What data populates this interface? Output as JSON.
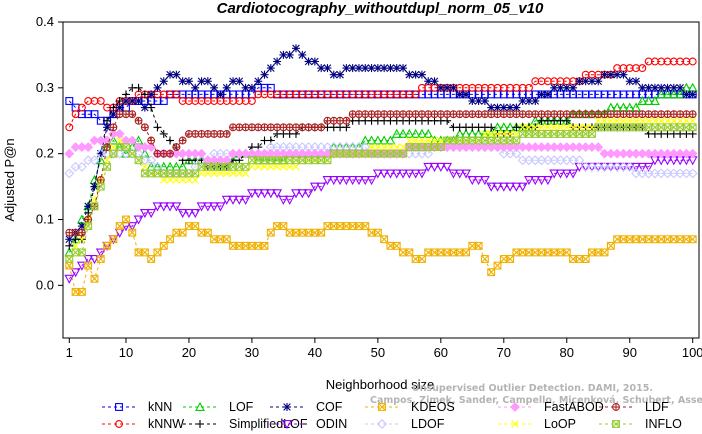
{
  "watermark": [
    "Unsupervised Outlier Detection. DAMI, 2015.",
    "Campos, Zimek, Sander, Campello, Micenková, Schubert, Assent, Houle"
  ],
  "chart_data": {
    "type": "line",
    "title": "Cardiotocography_withoutdupl_norm_05_v10",
    "xlabel": "Neighborhood size",
    "ylabel": "Adjusted P@n",
    "xlim": [
      0,
      101
    ],
    "ylim": [
      -0.08,
      0.4
    ],
    "xticks": [
      1,
      10,
      20,
      30,
      40,
      50,
      60,
      70,
      80,
      90,
      100
    ],
    "yticks": [
      0.0,
      0.1,
      0.2,
      0.3,
      0.4
    ],
    "ytick_labels": [
      "0.0",
      "0.1",
      "0.2",
      "0.3",
      "0.4"
    ],
    "grid": false,
    "legend_position": "bottom",
    "x_start": 1,
    "series": [
      {
        "name": "kNN",
        "color": "#0000ff",
        "marker": "square",
        "keys": [
          [
            1,
            0.28
          ],
          [
            2,
            0.27
          ],
          [
            3,
            0.26
          ],
          [
            5,
            0.255
          ],
          [
            7,
            0.25
          ],
          [
            9,
            0.27
          ],
          [
            12,
            0.28
          ],
          [
            16,
            0.28
          ],
          [
            18,
            0.29
          ],
          [
            30,
            0.29
          ],
          [
            32,
            0.3
          ],
          [
            34,
            0.29
          ],
          [
            100,
            0.29
          ]
        ]
      },
      {
        "name": "kNNW",
        "color": "#ff0000",
        "marker": "circle",
        "keys": [
          [
            1,
            0.24
          ],
          [
            3,
            0.27
          ],
          [
            5,
            0.28
          ],
          [
            7,
            0.27
          ],
          [
            10,
            0.28
          ],
          [
            14,
            0.29
          ],
          [
            16,
            0.29
          ],
          [
            20,
            0.28
          ],
          [
            28,
            0.28
          ],
          [
            33,
            0.29
          ],
          [
            55,
            0.29
          ],
          [
            58,
            0.3
          ],
          [
            62,
            0.3
          ],
          [
            70,
            0.3
          ],
          [
            80,
            0.31
          ],
          [
            90,
            0.33
          ],
          [
            95,
            0.34
          ],
          [
            100,
            0.34
          ]
        ]
      },
      {
        "name": "LOF",
        "color": "#00cc00",
        "marker": "triangle",
        "keys": [
          [
            1,
            0.05
          ],
          [
            4,
            0.12
          ],
          [
            6,
            0.19
          ],
          [
            8,
            0.22
          ],
          [
            10,
            0.2
          ],
          [
            12,
            0.22
          ],
          [
            14,
            0.18
          ],
          [
            18,
            0.18
          ],
          [
            22,
            0.19
          ],
          [
            26,
            0.18
          ],
          [
            28,
            0.2
          ],
          [
            32,
            0.19
          ],
          [
            40,
            0.2
          ],
          [
            50,
            0.22
          ],
          [
            56,
            0.23
          ],
          [
            60,
            0.22
          ],
          [
            66,
            0.23
          ],
          [
            72,
            0.24
          ],
          [
            78,
            0.25
          ],
          [
            84,
            0.26
          ],
          [
            90,
            0.27
          ],
          [
            100,
            0.3
          ]
        ]
      },
      {
        "name": "SimplifiedLOF",
        "color": "#000000",
        "marker": "plus",
        "keys": [
          [
            1,
            0.06
          ],
          [
            3,
            0.07
          ],
          [
            5,
            0.15
          ],
          [
            7,
            0.25
          ],
          [
            9,
            0.28
          ],
          [
            11,
            0.3
          ],
          [
            13,
            0.29
          ],
          [
            15,
            0.24
          ],
          [
            17,
            0.22
          ],
          [
            19,
            0.19
          ],
          [
            21,
            0.19
          ],
          [
            23,
            0.18
          ],
          [
            26,
            0.18
          ],
          [
            29,
            0.2
          ],
          [
            32,
            0.22
          ],
          [
            36,
            0.23
          ],
          [
            40,
            0.24
          ],
          [
            44,
            0.24
          ],
          [
            48,
            0.25
          ],
          [
            52,
            0.25
          ],
          [
            56,
            0.25
          ],
          [
            60,
            0.25
          ],
          [
            62,
            0.24
          ],
          [
            66,
            0.24
          ],
          [
            70,
            0.23
          ],
          [
            74,
            0.24
          ],
          [
            78,
            0.25
          ],
          [
            82,
            0.24
          ],
          [
            86,
            0.24
          ],
          [
            90,
            0.24
          ],
          [
            94,
            0.23
          ],
          [
            100,
            0.23
          ]
        ]
      },
      {
        "name": "COF",
        "color": "#000080",
        "marker": "star",
        "keys": [
          [
            1,
            0.07
          ],
          [
            3,
            0.09
          ],
          [
            5,
            0.15
          ],
          [
            7,
            0.24
          ],
          [
            9,
            0.27
          ],
          [
            11,
            0.28
          ],
          [
            13,
            0.27
          ],
          [
            15,
            0.3
          ],
          [
            17,
            0.32
          ],
          [
            19,
            0.31
          ],
          [
            21,
            0.3
          ],
          [
            23,
            0.31
          ],
          [
            25,
            0.29
          ],
          [
            27,
            0.31
          ],
          [
            30,
            0.3
          ],
          [
            32,
            0.32
          ],
          [
            34,
            0.34
          ],
          [
            36,
            0.35
          ],
          [
            37,
            0.36
          ],
          [
            39,
            0.34
          ],
          [
            41,
            0.33
          ],
          [
            43,
            0.32
          ],
          [
            46,
            0.33
          ],
          [
            52,
            0.33
          ],
          [
            56,
            0.32
          ],
          [
            60,
            0.3
          ],
          [
            64,
            0.29
          ],
          [
            68,
            0.27
          ],
          [
            72,
            0.27
          ],
          [
            76,
            0.29
          ],
          [
            80,
            0.3
          ],
          [
            84,
            0.31
          ],
          [
            88,
            0.32
          ],
          [
            92,
            0.3
          ],
          [
            96,
            0.3
          ],
          [
            100,
            0.29
          ]
        ]
      },
      {
        "name": "ODIN",
        "color": "#9900ff",
        "marker": "triangle-down",
        "keys": [
          [
            1,
            0.01
          ],
          [
            3,
            0.03
          ],
          [
            5,
            0.04
          ],
          [
            7,
            0.06
          ],
          [
            9,
            0.08
          ],
          [
            11,
            0.09
          ],
          [
            13,
            0.11
          ],
          [
            16,
            0.12
          ],
          [
            20,
            0.11
          ],
          [
            24,
            0.12
          ],
          [
            28,
            0.13
          ],
          [
            32,
            0.14
          ],
          [
            36,
            0.13
          ],
          [
            40,
            0.15
          ],
          [
            44,
            0.16
          ],
          [
            48,
            0.16
          ],
          [
            52,
            0.17
          ],
          [
            56,
            0.17
          ],
          [
            60,
            0.18
          ],
          [
            62,
            0.17
          ],
          [
            66,
            0.16
          ],
          [
            68,
            0.15
          ],
          [
            72,
            0.15
          ],
          [
            76,
            0.16
          ],
          [
            80,
            0.17
          ],
          [
            84,
            0.18
          ],
          [
            88,
            0.18
          ],
          [
            92,
            0.18
          ],
          [
            96,
            0.19
          ],
          [
            100,
            0.19
          ]
        ]
      },
      {
        "name": "KDEOS",
        "color": "#f0b000",
        "marker": "square-x",
        "keys": [
          [
            1,
            0.03
          ],
          [
            2,
            -0.01
          ],
          [
            3,
            -0.01
          ],
          [
            4,
            0.03
          ],
          [
            5,
            0.01
          ],
          [
            6,
            0.04
          ],
          [
            8,
            0.07
          ],
          [
            10,
            0.1
          ],
          [
            12,
            0.05
          ],
          [
            14,
            0.04
          ],
          [
            16,
            0.06
          ],
          [
            20,
            0.09
          ],
          [
            24,
            0.07
          ],
          [
            28,
            0.06
          ],
          [
            32,
            0.06
          ],
          [
            34,
            0.09
          ],
          [
            36,
            0.08
          ],
          [
            40,
            0.08
          ],
          [
            44,
            0.09
          ],
          [
            48,
            0.09
          ],
          [
            52,
            0.06
          ],
          [
            56,
            0.04
          ],
          [
            60,
            0.05
          ],
          [
            64,
            0.05
          ],
          [
            66,
            0.06
          ],
          [
            68,
            0.02
          ],
          [
            70,
            0.04
          ],
          [
            74,
            0.05
          ],
          [
            78,
            0.05
          ],
          [
            82,
            0.04
          ],
          [
            86,
            0.05
          ],
          [
            88,
            0.07
          ],
          [
            100,
            0.07
          ]
        ]
      },
      {
        "name": "LDOF",
        "color": "#c8c8ff",
        "marker": "diamond",
        "keys": [
          [
            1,
            0.17
          ],
          [
            4,
            0.19
          ],
          [
            8,
            0.2
          ],
          [
            12,
            0.2
          ],
          [
            16,
            0.17
          ],
          [
            20,
            0.17
          ],
          [
            24,
            0.2
          ],
          [
            30,
            0.2
          ],
          [
            36,
            0.21
          ],
          [
            44,
            0.21
          ],
          [
            52,
            0.2
          ],
          [
            56,
            0.2
          ],
          [
            62,
            0.21
          ],
          [
            68,
            0.21
          ],
          [
            74,
            0.19
          ],
          [
            80,
            0.19
          ],
          [
            84,
            0.18
          ],
          [
            88,
            0.18
          ],
          [
            92,
            0.17
          ],
          [
            96,
            0.17
          ],
          [
            100,
            0.17
          ]
        ]
      },
      {
        "name": "FastABOD",
        "color": "#ff99ff",
        "marker": "diamond-filled",
        "keys": [
          [
            1,
            0.2
          ],
          [
            3,
            0.21
          ],
          [
            6,
            0.22
          ],
          [
            9,
            0.23
          ],
          [
            12,
            0.21
          ],
          [
            16,
            0.2
          ],
          [
            20,
            0.2
          ],
          [
            24,
            0.19
          ],
          [
            30,
            0.2
          ],
          [
            40,
            0.2
          ],
          [
            50,
            0.2
          ],
          [
            60,
            0.21
          ],
          [
            70,
            0.21
          ],
          [
            80,
            0.21
          ],
          [
            90,
            0.2
          ],
          [
            100,
            0.2
          ]
        ]
      },
      {
        "name": "LoOP",
        "color": "#ffff00",
        "marker": "x",
        "keys": [
          [
            1,
            0.04
          ],
          [
            3,
            0.07
          ],
          [
            5,
            0.13
          ],
          [
            7,
            0.19
          ],
          [
            9,
            0.22
          ],
          [
            11,
            0.2
          ],
          [
            13,
            0.18
          ],
          [
            16,
            0.16
          ],
          [
            20,
            0.16
          ],
          [
            24,
            0.17
          ],
          [
            28,
            0.17
          ],
          [
            32,
            0.18
          ],
          [
            36,
            0.18
          ],
          [
            40,
            0.19
          ],
          [
            46,
            0.2
          ],
          [
            52,
            0.21
          ],
          [
            58,
            0.22
          ],
          [
            64,
            0.22
          ],
          [
            70,
            0.23
          ],
          [
            76,
            0.24
          ],
          [
            82,
            0.24
          ],
          [
            88,
            0.25
          ],
          [
            94,
            0.25
          ],
          [
            100,
            0.25
          ]
        ]
      },
      {
        "name": "LDF",
        "color": "#aa2222",
        "marker": "circle-plus",
        "keys": [
          [
            1,
            0.08
          ],
          [
            3,
            0.08
          ],
          [
            5,
            0.12
          ],
          [
            7,
            0.21
          ],
          [
            9,
            0.26
          ],
          [
            11,
            0.26
          ],
          [
            13,
            0.24
          ],
          [
            15,
            0.2
          ],
          [
            17,
            0.2
          ],
          [
            19,
            0.22
          ],
          [
            21,
            0.23
          ],
          [
            25,
            0.23
          ],
          [
            28,
            0.24
          ],
          [
            32,
            0.24
          ],
          [
            36,
            0.24
          ],
          [
            40,
            0.24
          ],
          [
            44,
            0.25
          ],
          [
            48,
            0.26
          ],
          [
            52,
            0.26
          ],
          [
            56,
            0.26
          ],
          [
            60,
            0.26
          ],
          [
            66,
            0.26
          ],
          [
            72,
            0.26
          ],
          [
            80,
            0.26
          ],
          [
            90,
            0.26
          ],
          [
            100,
            0.26
          ]
        ]
      },
      {
        "name": "INFLO",
        "color": "#99cc33",
        "marker": "square-x",
        "keys": [
          [
            1,
            0.04
          ],
          [
            3,
            0.05
          ],
          [
            5,
            0.12
          ],
          [
            7,
            0.18
          ],
          [
            9,
            0.21
          ],
          [
            11,
            0.2
          ],
          [
            13,
            0.17
          ],
          [
            16,
            0.17
          ],
          [
            20,
            0.17
          ],
          [
            24,
            0.18
          ],
          [
            28,
            0.18
          ],
          [
            32,
            0.19
          ],
          [
            36,
            0.19
          ],
          [
            40,
            0.19
          ],
          [
            46,
            0.2
          ],
          [
            52,
            0.2
          ],
          [
            58,
            0.21
          ],
          [
            64,
            0.22
          ],
          [
            70,
            0.22
          ],
          [
            76,
            0.23
          ],
          [
            82,
            0.23
          ],
          [
            88,
            0.24
          ],
          [
            94,
            0.24
          ],
          [
            100,
            0.24
          ]
        ]
      }
    ]
  }
}
